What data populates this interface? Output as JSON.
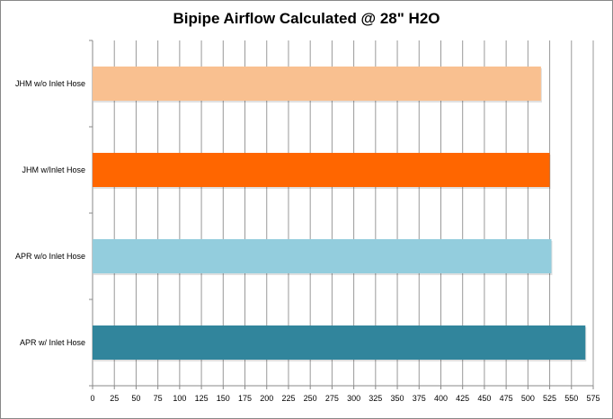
{
  "chart_data": {
    "type": "bar",
    "orientation": "horizontal",
    "title": "Bipipe Airflow Calculated @ 28\" H2O",
    "categories": [
      "JHM w/o Inlet Hose",
      "JHM w/Inlet Hose",
      "APR w/o Inlet Hose",
      "APR w/ Inlet Hose"
    ],
    "values": [
      515,
      525,
      527,
      566
    ],
    "colors": [
      "#F9C090",
      "#FF6600",
      "#93CDDD",
      "#31859C"
    ],
    "xlabel": "",
    "ylabel": "",
    "xlim": [
      0,
      575
    ],
    "xticks": [
      0,
      25,
      50,
      75,
      100,
      125,
      150,
      175,
      200,
      225,
      250,
      275,
      300,
      325,
      350,
      375,
      400,
      425,
      450,
      475,
      500,
      525,
      550,
      575
    ],
    "grid": true
  }
}
